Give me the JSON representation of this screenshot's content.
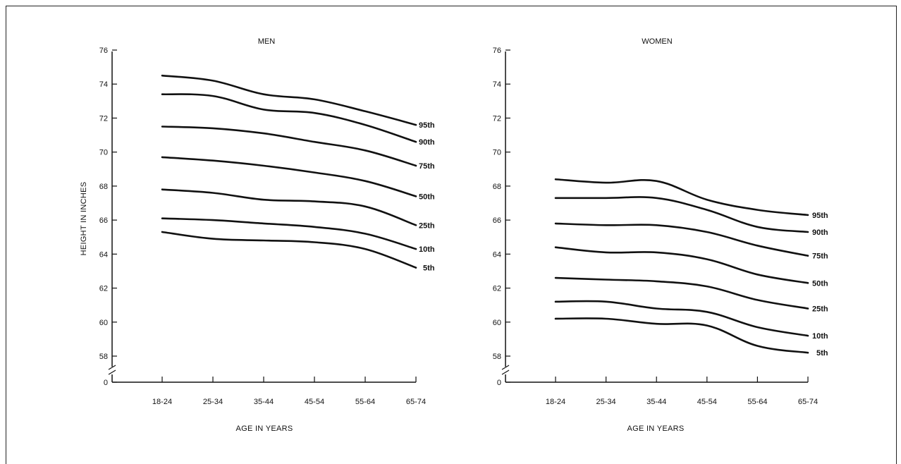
{
  "chart_data": [
    {
      "type": "line",
      "title": "MEN",
      "xlabel": "AGE IN YEARS",
      "ylabel": "HEIGHT IN INCHES",
      "categories": [
        "18-24",
        "25-34",
        "35-44",
        "45-54",
        "55-64",
        "65-74"
      ],
      "y_ticks": [
        0,
        58,
        60,
        62,
        64,
        66,
        68,
        70,
        72,
        74,
        76
      ],
      "ylim": [
        58,
        76
      ],
      "axis_break": true,
      "grid": false,
      "series": [
        {
          "name": "95th",
          "values": [
            74.5,
            74.2,
            73.4,
            73.1,
            72.4,
            71.6
          ]
        },
        {
          "name": "90th",
          "values": [
            73.4,
            73.3,
            72.5,
            72.3,
            71.6,
            70.6
          ]
        },
        {
          "name": "75th",
          "values": [
            71.5,
            71.4,
            71.1,
            70.6,
            70.1,
            69.2
          ]
        },
        {
          "name": "50th",
          "values": [
            69.7,
            69.5,
            69.2,
            68.8,
            68.3,
            67.4
          ]
        },
        {
          "name": "25th",
          "values": [
            67.8,
            67.6,
            67.2,
            67.1,
            66.8,
            65.7
          ]
        },
        {
          "name": "10th",
          "values": [
            66.1,
            66.0,
            65.8,
            65.6,
            65.2,
            64.3
          ]
        },
        {
          "name": "5th",
          "values": [
            65.3,
            64.9,
            64.8,
            64.7,
            64.3,
            63.2
          ]
        }
      ]
    },
    {
      "type": "line",
      "title": "WOMEN",
      "xlabel": "AGE IN YEARS",
      "ylabel": "",
      "categories": [
        "18-24",
        "25-34",
        "35-44",
        "45-54",
        "55-64",
        "65-74"
      ],
      "y_ticks": [
        0,
        58,
        60,
        62,
        64,
        66,
        68,
        70,
        72,
        74,
        76
      ],
      "ylim": [
        58,
        76
      ],
      "axis_break": true,
      "grid": false,
      "series": [
        {
          "name": "95th",
          "values": [
            68.4,
            68.2,
            68.3,
            67.2,
            66.6,
            66.3
          ]
        },
        {
          "name": "90th",
          "values": [
            67.3,
            67.3,
            67.3,
            66.6,
            65.6,
            65.3
          ]
        },
        {
          "name": "75th",
          "values": [
            65.8,
            65.7,
            65.7,
            65.3,
            64.5,
            63.9
          ]
        },
        {
          "name": "50th",
          "values": [
            64.4,
            64.1,
            64.1,
            63.7,
            62.8,
            62.3
          ]
        },
        {
          "name": "25th",
          "values": [
            62.6,
            62.5,
            62.4,
            62.1,
            61.3,
            60.8
          ]
        },
        {
          "name": "10th",
          "values": [
            61.2,
            61.2,
            60.8,
            60.6,
            59.7,
            59.2
          ]
        },
        {
          "name": "5th",
          "values": [
            60.2,
            60.2,
            59.9,
            59.8,
            58.6,
            58.2
          ]
        }
      ]
    }
  ]
}
